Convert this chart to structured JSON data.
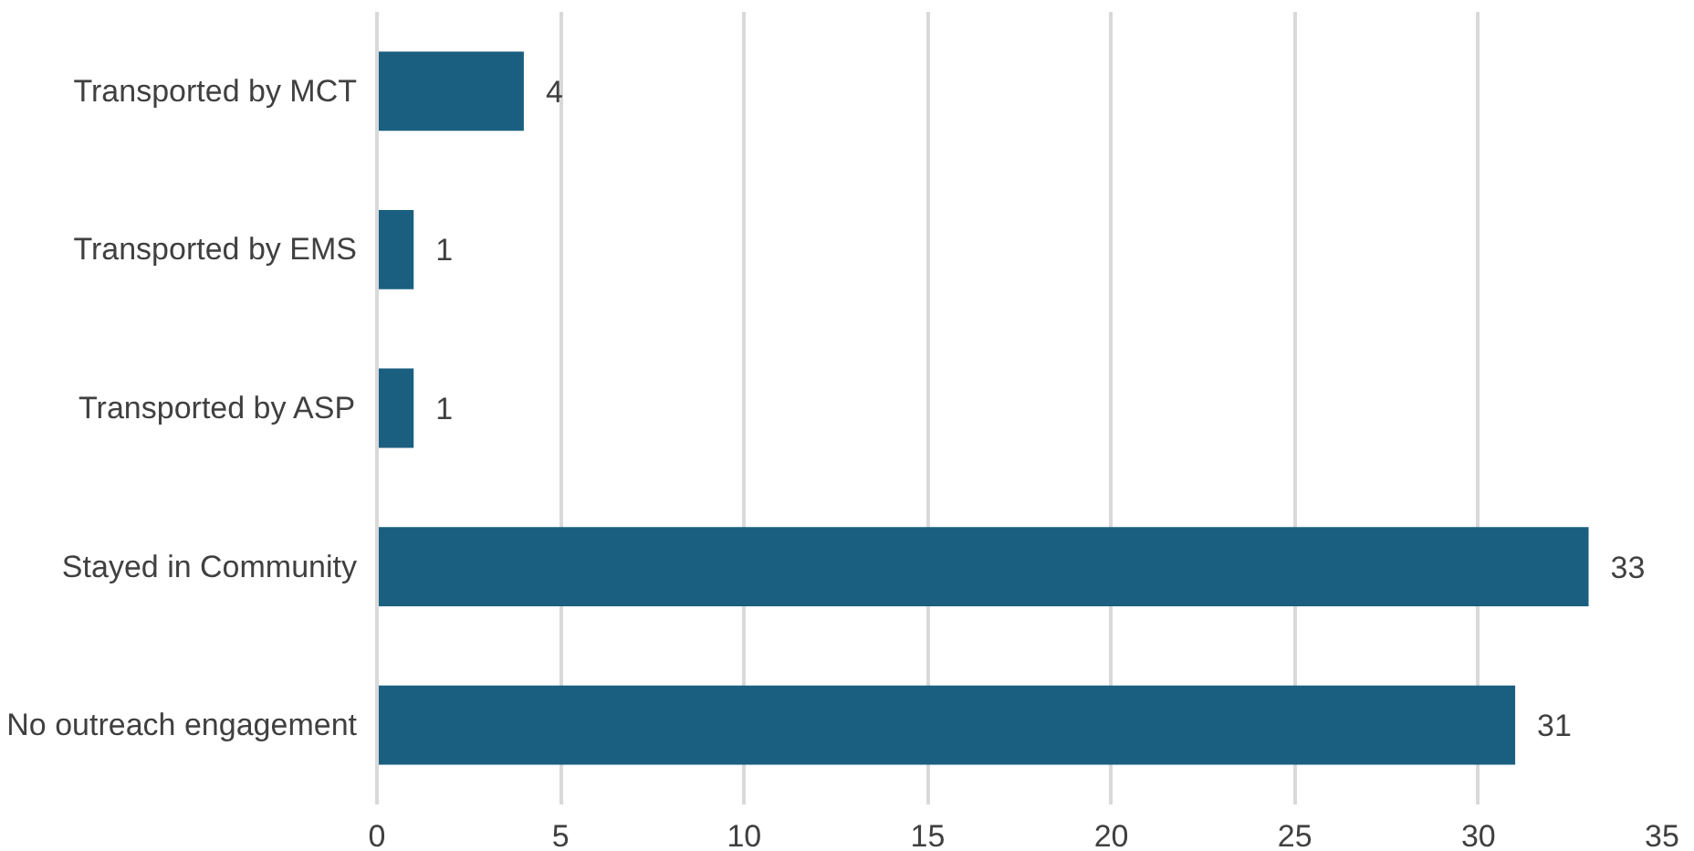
{
  "chart_data": {
    "type": "bar",
    "orientation": "horizontal",
    "categories": [
      "Transported by MCT",
      "Transported by EMS",
      "Transported by ASP",
      "Stayed in Community",
      "No outreach engagement"
    ],
    "values": [
      4,
      1,
      1,
      33,
      31
    ],
    "color": "#1b5f80",
    "xlim": [
      0,
      35
    ],
    "xticks": [
      0,
      5,
      10,
      15,
      20,
      25,
      30,
      35
    ],
    "grid": "x",
    "data_labels": true
  }
}
